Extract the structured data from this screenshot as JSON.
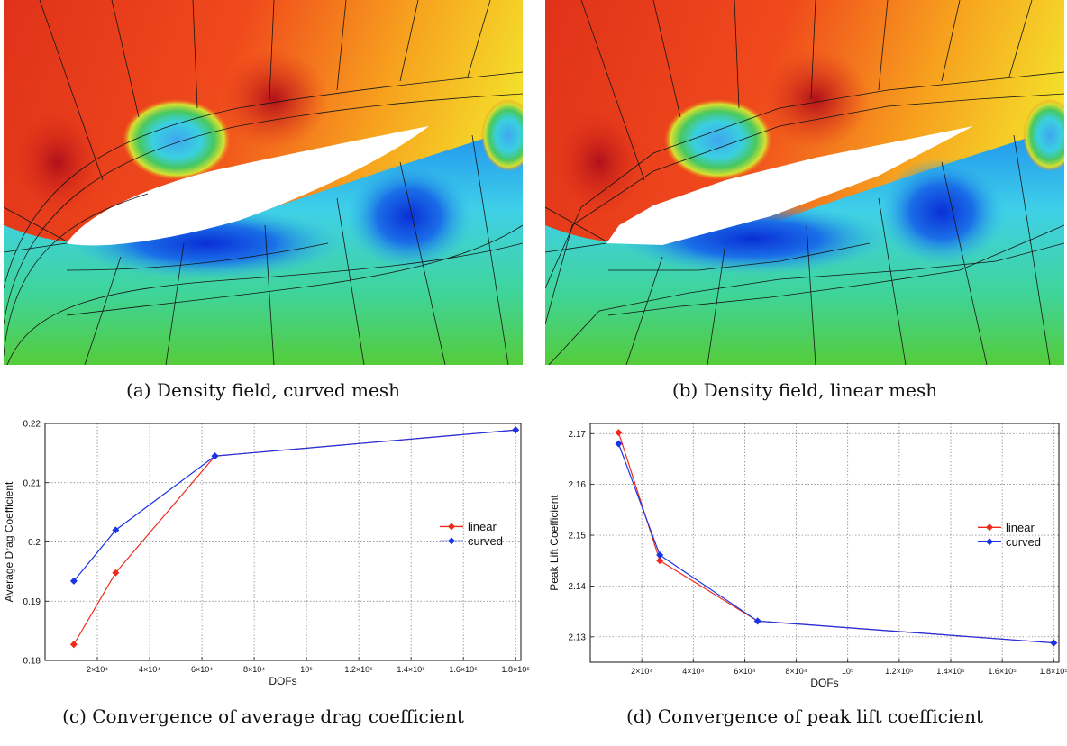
{
  "figure": {
    "captions": {
      "a": "(a) Density field, curved mesh",
      "b": "(b) Density field, linear mesh",
      "c": "(c) Convergence of average drag coefficient",
      "d": "(d) Convergence of peak lift coefficient"
    }
  },
  "chart_data": [
    {
      "id": "c",
      "type": "line",
      "title": "",
      "xlabel": "DOFs",
      "ylabel": "Average Drag Coefficient",
      "xlim": [
        0,
        182000
      ],
      "ylim": [
        0.18,
        0.22
      ],
      "x_ticks": [
        20000,
        40000,
        60000,
        80000,
        100000,
        120000,
        140000,
        160000,
        180000
      ],
      "x_tick_labels": [
        "2×10⁴",
        "4×10⁴",
        "6×10⁴",
        "8×10⁴",
        "10⁵",
        "1.2×10⁵",
        "1.4×10⁵",
        "1.6×10⁵",
        "1.8×10⁵"
      ],
      "y_ticks": [
        0.18,
        0.19,
        0.2,
        0.21,
        0.22
      ],
      "y_tick_labels": [
        "0.18",
        "0.19",
        "0.2",
        "0.21",
        "0.22"
      ],
      "grid": true,
      "legend": "center-right",
      "series": [
        {
          "name": "linear",
          "color": "#ee2a1b",
          "x": [
            11000,
            27000,
            65000,
            180000
          ],
          "y": [
            0.1827,
            0.1948,
            0.2145,
            0.2189
          ]
        },
        {
          "name": "curved",
          "color": "#1a34e8",
          "x": [
            11000,
            27000,
            65000,
            180000
          ],
          "y": [
            0.1934,
            0.202,
            0.2145,
            0.2189
          ]
        }
      ]
    },
    {
      "id": "d",
      "type": "line",
      "title": "",
      "xlabel": "DOFs",
      "ylabel": "Peak Lift Coefficient",
      "xlim": [
        0,
        182000
      ],
      "ylim": [
        2.125,
        2.172
      ],
      "x_ticks": [
        20000,
        40000,
        60000,
        80000,
        100000,
        120000,
        140000,
        160000,
        180000
      ],
      "x_tick_labels": [
        "2×10⁴",
        "4×10⁴",
        "6×10⁴",
        "8×10⁴",
        "10⁵",
        "1.2×10⁵",
        "1.4×10⁵",
        "1.6×10⁵",
        "1.8×10⁵"
      ],
      "y_ticks": [
        2.13,
        2.14,
        2.15,
        2.16,
        2.17
      ],
      "y_tick_labels": [
        "2.13",
        "2.14",
        "2.15",
        "2.16",
        "2.17"
      ],
      "grid": true,
      "legend": "center-right",
      "series": [
        {
          "name": "linear",
          "color": "#ee2a1b",
          "x": [
            11000,
            27000,
            65000,
            180000
          ],
          "y": [
            2.1702,
            2.145,
            2.1331,
            2.1288
          ]
        },
        {
          "name": "curved",
          "color": "#1a34e8",
          "x": [
            11000,
            27000,
            65000,
            180000
          ],
          "y": [
            2.168,
            2.1461,
            2.1331,
            2.1288
          ]
        }
      ]
    }
  ]
}
